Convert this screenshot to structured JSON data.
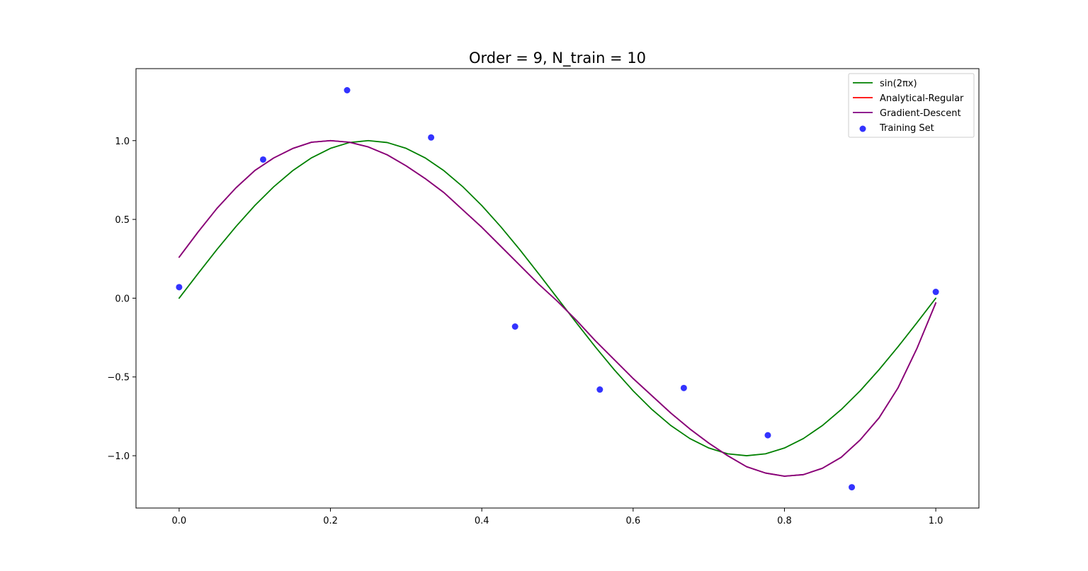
{
  "chart_data": {
    "type": "line",
    "title": "Order = 9, N_train = 10",
    "xlabel": "",
    "ylabel": "",
    "xlim": [
      -0.057,
      1.057
    ],
    "ylim": [
      -1.332,
      1.457
    ],
    "x_ticks": [
      {
        "value": 0.0,
        "label": "0.0"
      },
      {
        "value": 0.2,
        "label": "0.2"
      },
      {
        "value": 0.4,
        "label": "0.4"
      },
      {
        "value": 0.6,
        "label": "0.6"
      },
      {
        "value": 0.8,
        "label": "0.8"
      },
      {
        "value": 1.0,
        "label": "1.0"
      }
    ],
    "y_ticks": [
      {
        "value": -1.0,
        "label": "−1.0"
      },
      {
        "value": -0.5,
        "label": "−0.5"
      },
      {
        "value": 0.0,
        "label": "0.0"
      },
      {
        "value": 0.5,
        "label": "0.5"
      },
      {
        "value": 1.0,
        "label": "1.0"
      }
    ],
    "grid": false,
    "legend_position": "top-right",
    "series": [
      {
        "name": "sin(2πx)",
        "kind": "line",
        "color": "#008000",
        "x": [
          0.0,
          0.025,
          0.05,
          0.075,
          0.1,
          0.125,
          0.15,
          0.175,
          0.2,
          0.225,
          0.25,
          0.275,
          0.3,
          0.325,
          0.35,
          0.375,
          0.4,
          0.425,
          0.45,
          0.475,
          0.5,
          0.525,
          0.55,
          0.575,
          0.6,
          0.625,
          0.65,
          0.675,
          0.7,
          0.725,
          0.75,
          0.775,
          0.8,
          0.825,
          0.85,
          0.875,
          0.9,
          0.925,
          0.95,
          0.975,
          1.0
        ],
        "y": [
          0.0,
          0.156,
          0.309,
          0.454,
          0.588,
          0.707,
          0.809,
          0.891,
          0.951,
          0.988,
          1.0,
          0.988,
          0.951,
          0.891,
          0.809,
          0.707,
          0.588,
          0.454,
          0.309,
          0.156,
          0.0,
          -0.156,
          -0.309,
          -0.454,
          -0.588,
          -0.707,
          -0.809,
          -0.891,
          -0.951,
          -0.988,
          -1.0,
          -0.988,
          -0.951,
          -0.891,
          -0.809,
          -0.707,
          -0.588,
          -0.454,
          -0.309,
          -0.156,
          0.0
        ]
      },
      {
        "name": "Analytical-Regular",
        "kind": "line",
        "color": "#ff0000",
        "x": [
          0.0,
          0.025,
          0.05,
          0.075,
          0.1,
          0.125,
          0.15,
          0.175,
          0.2,
          0.225,
          0.25,
          0.275,
          0.3,
          0.325,
          0.35,
          0.375,
          0.4,
          0.425,
          0.45,
          0.475,
          0.5,
          0.525,
          0.55,
          0.575,
          0.6,
          0.625,
          0.65,
          0.675,
          0.7,
          0.725,
          0.75,
          0.775,
          0.8,
          0.825,
          0.85,
          0.875,
          0.9,
          0.925,
          0.95,
          0.975,
          1.0
        ],
        "y": [
          0.26,
          0.42,
          0.57,
          0.7,
          0.81,
          0.89,
          0.95,
          0.99,
          1.0,
          0.99,
          0.96,
          0.91,
          0.84,
          0.76,
          0.67,
          0.56,
          0.45,
          0.33,
          0.21,
          0.09,
          -0.02,
          -0.14,
          -0.27,
          -0.39,
          -0.51,
          -0.62,
          -0.73,
          -0.83,
          -0.92,
          -1.0,
          -1.07,
          -1.11,
          -1.13,
          -1.12,
          -1.08,
          -1.01,
          -0.9,
          -0.76,
          -0.57,
          -0.32,
          -0.03
        ]
      },
      {
        "name": "Gradient-Descent",
        "kind": "line",
        "color": "#800080",
        "x": [
          0.0,
          0.025,
          0.05,
          0.075,
          0.1,
          0.125,
          0.15,
          0.175,
          0.2,
          0.225,
          0.25,
          0.275,
          0.3,
          0.325,
          0.35,
          0.375,
          0.4,
          0.425,
          0.45,
          0.475,
          0.5,
          0.525,
          0.55,
          0.575,
          0.6,
          0.625,
          0.65,
          0.675,
          0.7,
          0.725,
          0.75,
          0.775,
          0.8,
          0.825,
          0.85,
          0.875,
          0.9,
          0.925,
          0.95,
          0.975,
          1.0
        ],
        "y": [
          0.26,
          0.42,
          0.57,
          0.7,
          0.81,
          0.89,
          0.95,
          0.99,
          1.0,
          0.99,
          0.96,
          0.91,
          0.84,
          0.76,
          0.67,
          0.56,
          0.45,
          0.33,
          0.21,
          0.09,
          -0.02,
          -0.14,
          -0.27,
          -0.39,
          -0.51,
          -0.62,
          -0.73,
          -0.83,
          -0.92,
          -1.0,
          -1.07,
          -1.11,
          -1.13,
          -1.12,
          -1.08,
          -1.01,
          -0.9,
          -0.76,
          -0.57,
          -0.32,
          -0.03
        ]
      },
      {
        "name": "Training Set",
        "kind": "scatter",
        "color": "#0000ff",
        "x": [
          0.0,
          0.111,
          0.222,
          0.333,
          0.444,
          0.556,
          0.667,
          0.778,
          0.889,
          1.0
        ],
        "y": [
          0.07,
          0.88,
          1.32,
          1.02,
          -0.18,
          -0.58,
          -0.57,
          -0.87,
          -1.2,
          0.04
        ]
      }
    ]
  }
}
